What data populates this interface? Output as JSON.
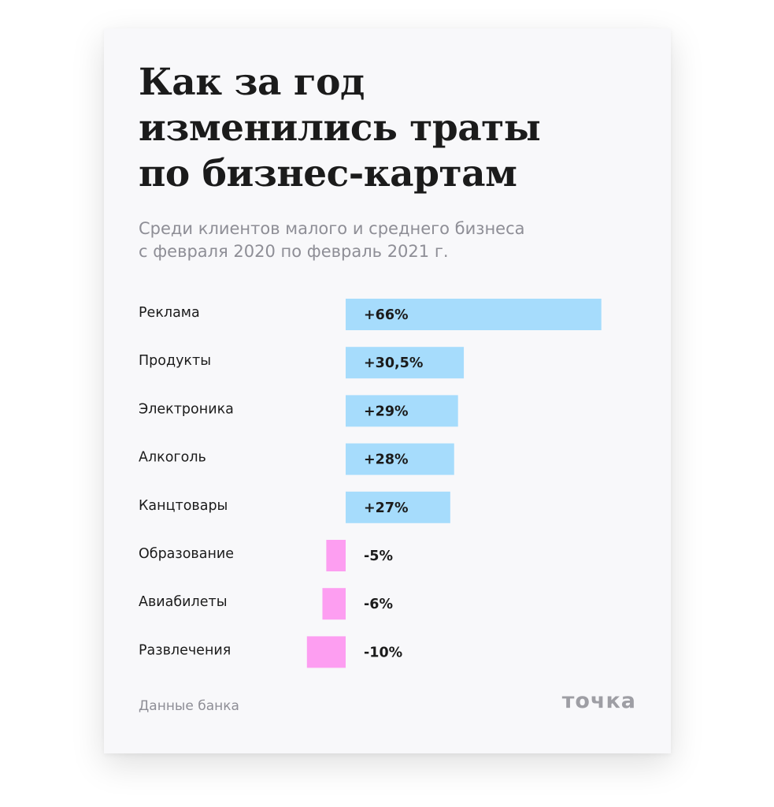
{
  "title": "Как за год\nизменились траты\nпо бизнес-картам",
  "subtitle": "Среди клиентов малого и среднего бизнеса\nс февраля 2020 по февраль 2021 г.",
  "footer": {
    "source": "Данные банка",
    "brand": "точка"
  },
  "colors": {
    "positive": "#a6dcfc",
    "negative": "#fd9ef1",
    "background": "#f8f8fa",
    "text": "#1b1b1b",
    "muted": "#8e8e96"
  },
  "chart_data": {
    "type": "bar",
    "orientation": "horizontal",
    "title": "Как за год изменились траты по бизнес-картам",
    "subtitle": "Среди клиентов малого и среднего бизнеса с февраля 2020 по февраль 2021 г.",
    "categories": [
      "Реклама",
      "Продукты",
      "Электроника",
      "Алкоголь",
      "Канцтовары",
      "Образование",
      "Авиабилеты",
      "Развлечения"
    ],
    "values": [
      66,
      30.5,
      29,
      28,
      27,
      -5,
      -6,
      -10
    ],
    "labels": [
      "+66%",
      "+30,5%",
      "+29%",
      "+28%",
      "+27%",
      "-5%",
      "-6%",
      "-10%"
    ],
    "unit": "%",
    "grid": false,
    "legend": "none"
  }
}
